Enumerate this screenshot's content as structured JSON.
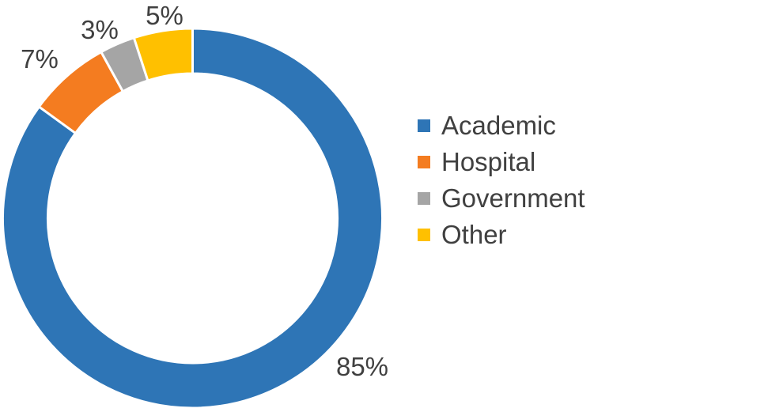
{
  "chart_data": {
    "type": "pie",
    "variant": "donut",
    "categories": [
      "Academic",
      "Hospital",
      "Government",
      "Other"
    ],
    "values": [
      85,
      7,
      3,
      5
    ],
    "data_labels": [
      "85%",
      "7%",
      "3%",
      "5%"
    ],
    "colors": [
      "#2E75B6",
      "#F47C20",
      "#A5A5A5",
      "#FFC000"
    ],
    "legend_position": "right"
  }
}
